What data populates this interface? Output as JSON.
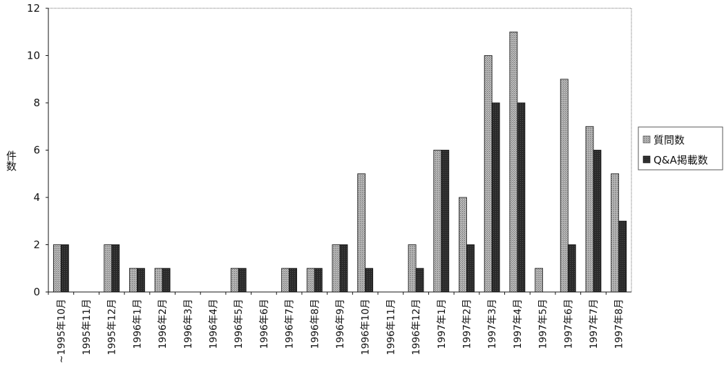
{
  "chart_data": {
    "type": "bar",
    "title": "",
    "xlabel": "",
    "ylabel": "件数",
    "ylim": [
      0,
      12
    ],
    "yticks": [
      0,
      2,
      4,
      6,
      8,
      10,
      12
    ],
    "grid": false,
    "legend_position": "right",
    "categories": [
      "~1995年10月",
      "1995年11月",
      "1995年12月",
      "1996年1月",
      "1996年2月",
      "1996年3月",
      "1996年4月",
      "1996年5月",
      "1996年6月",
      "1996年7月",
      "1996年8月",
      "1996年9月",
      "1996年10月",
      "1996年11月",
      "1996年12月",
      "1997年1月",
      "1997年2月",
      "1997年3月",
      "1997年4月",
      "1997年5月",
      "1997年6月",
      "1997年7月",
      "1997年8月"
    ],
    "series": [
      {
        "name": "質問数",
        "color": "#9a9a9a",
        "values": [
          2,
          0,
          2,
          1,
          1,
          0,
          0,
          1,
          0,
          1,
          1,
          2,
          5,
          0,
          2,
          6,
          4,
          10,
          11,
          1,
          9,
          7,
          5
        ]
      },
      {
        "name": "Q&A掲載数",
        "color": "#2a2a2a",
        "values": [
          2,
          0,
          2,
          1,
          1,
          0,
          0,
          1,
          0,
          1,
          1,
          2,
          1,
          0,
          1,
          6,
          2,
          8,
          8,
          0,
          2,
          6,
          3
        ]
      }
    ]
  }
}
